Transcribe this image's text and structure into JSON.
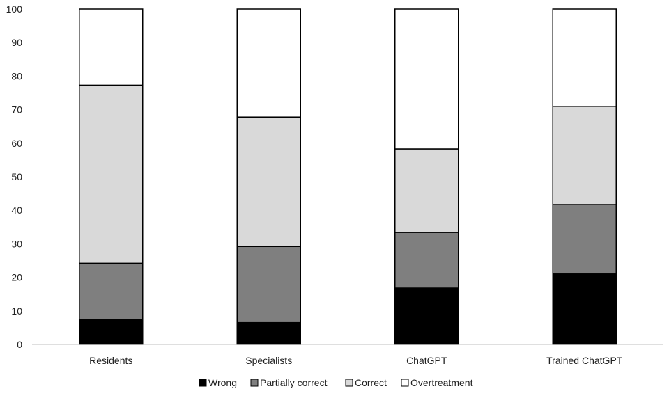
{
  "chart_data": {
    "type": "bar",
    "stacked": true,
    "title": "",
    "xlabel": "",
    "ylabel": "",
    "ylim": [
      0,
      100
    ],
    "yticks": [
      0,
      10,
      20,
      30,
      40,
      50,
      60,
      70,
      80,
      90,
      100
    ],
    "grid": false,
    "legend_position": "bottom",
    "categories": [
      "Residents",
      "Specialists",
      "ChatGPT",
      "Trained ChatGPT"
    ],
    "series": [
      {
        "name": "Wrong",
        "color": "#000000",
        "values": [
          7.5,
          6.5,
          16.8,
          21.0
        ]
      },
      {
        "name": "Partially correct",
        "color": "#7f7f7f",
        "values": [
          16.7,
          22.7,
          16.6,
          20.7
        ]
      },
      {
        "name": "Correct",
        "color": "#d9d9d9",
        "values": [
          53.1,
          38.6,
          24.9,
          29.3
        ]
      },
      {
        "name": "Overtreatment",
        "color": "#ffffff",
        "values": [
          22.7,
          32.2,
          41.7,
          29.0
        ]
      }
    ]
  }
}
